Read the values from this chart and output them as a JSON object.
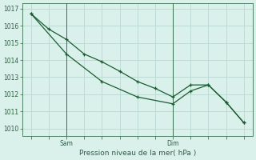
{
  "xlabel": "Pression niveau de la mer( hPa )",
  "background_color": "#daf0ea",
  "grid_color": "#b8d8d0",
  "line_color": "#1a5c32",
  "axes_color": "#2a6040",
  "tick_color": "#2a6040",
  "spine_color": "#3a7050",
  "line1_x": [
    0,
    1,
    2,
    3,
    4,
    5,
    6,
    7,
    8,
    9,
    10,
    11,
    12
  ],
  "line1_y": [
    1016.7,
    1015.8,
    1015.2,
    1014.35,
    1013.9,
    1013.35,
    1012.75,
    1012.35,
    1011.85,
    1012.55,
    1012.55,
    1011.55,
    1010.35
  ],
  "line2_x": [
    0,
    2,
    4,
    6,
    8,
    9,
    10,
    11,
    12
  ],
  "line2_y": [
    1016.7,
    1014.35,
    1012.75,
    1011.85,
    1011.45,
    1012.2,
    1012.55,
    1011.55,
    1010.35
  ],
  "ylim": [
    1009.6,
    1017.3
  ],
  "yticks": [
    1010,
    1011,
    1012,
    1013,
    1014,
    1015,
    1016,
    1017
  ],
  "xlim": [
    -0.5,
    12.5
  ],
  "sam_x": 2.0,
  "dim_x": 8.0,
  "num_xticks": 13
}
